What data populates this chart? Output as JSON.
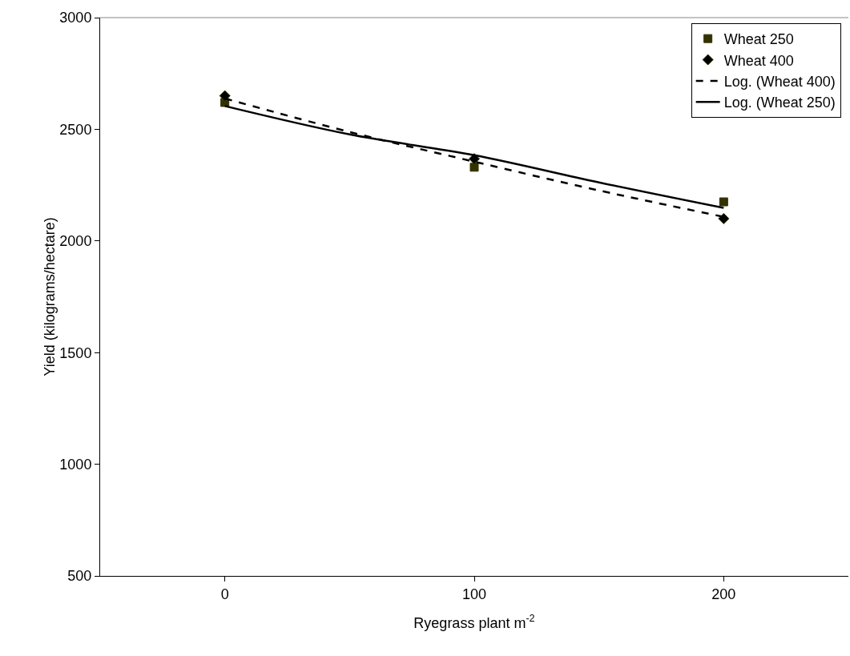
{
  "chart_data": {
    "type": "scatter",
    "xlabel": "Ryegrass plant m$^{-2}$",
    "ylabel": "Yield (kilograms/hectare)",
    "xlim": [
      -50,
      250
    ],
    "xticks": [
      0,
      100,
      200
    ],
    "ylim": [
      500,
      3000
    ],
    "yticks": [
      500,
      1000,
      1500,
      2000,
      2500,
      3000
    ],
    "grid": false,
    "legend": "top right",
    "series": [
      {
        "name": "Wheat 250",
        "marker": "square",
        "color": "#333300",
        "x": [
          0,
          100,
          200
        ],
        "values": [
          2620,
          2330,
          2175
        ]
      },
      {
        "name": "Wheat 400",
        "marker": "diamond",
        "color": "#000000",
        "x": [
          0,
          100,
          200
        ],
        "values": [
          2650,
          2368,
          2100
        ]
      },
      {
        "name": "Log. (Wheat 400)",
        "type": "line",
        "marker": "none",
        "line_style": "dashed",
        "color": "#000000",
        "x": [
          0,
          50,
          100,
          150,
          200
        ],
        "values": [
          2638,
          2488,
          2355,
          2226,
          2108
        ]
      },
      {
        "name": "Log. (Wheat 250)",
        "type": "line",
        "marker": "none",
        "line_style": "solid",
        "color": "#000000",
        "x": [
          0,
          50,
          100,
          150,
          200
        ],
        "values": [
          2604,
          2477,
          2384,
          2262,
          2148
        ]
      }
    ]
  }
}
